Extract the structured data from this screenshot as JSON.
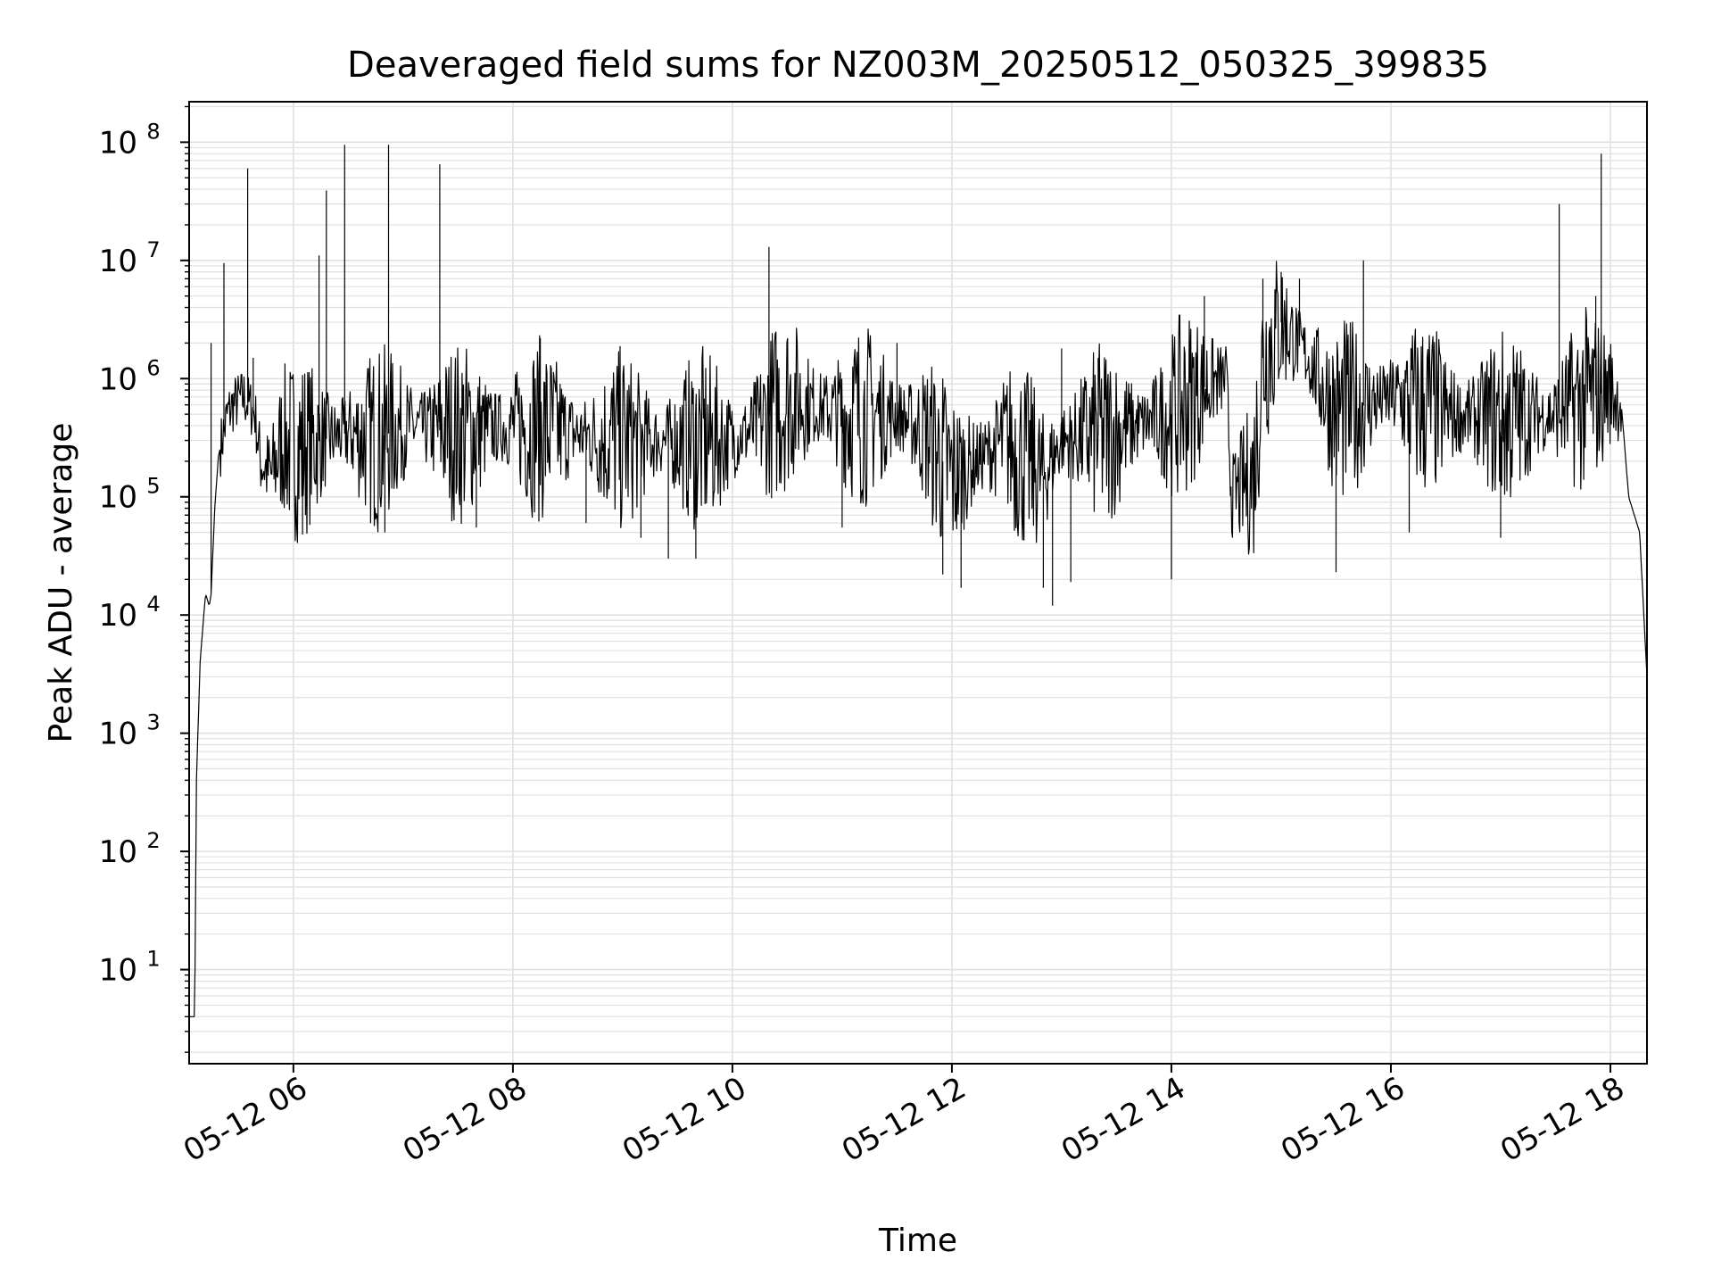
{
  "chart_data": {
    "type": "line",
    "title": "Deaveraged field sums for NZ003M_20250512_050325_399835",
    "xlabel": "Time",
    "ylabel": "Peak ADU - average",
    "y_scale": "log",
    "ylim": [
      1.6,
      220000000
    ],
    "xlim": [
      "2025-05-12 05:03",
      "2025-05-12 18:20"
    ],
    "grid": true,
    "grid_color": "#e0e0e0",
    "line_color": "#000000",
    "x_ticks": [
      {
        "label": "05-12 06",
        "time": "2025-05-12 06:00"
      },
      {
        "label": "05-12 08",
        "time": "2025-05-12 08:00"
      },
      {
        "label": "05-12 10",
        "time": "2025-05-12 10:00"
      },
      {
        "label": "05-12 12",
        "time": "2025-05-12 12:00"
      },
      {
        "label": "05-12 14",
        "time": "2025-05-12 14:00"
      },
      {
        "label": "05-12 16",
        "time": "2025-05-12 16:00"
      },
      {
        "label": "05-12 18",
        "time": "2025-05-12 18:00"
      }
    ],
    "y_ticks": [
      {
        "base": "10",
        "exp": "1",
        "value": 10
      },
      {
        "base": "10",
        "exp": "2",
        "value": 100
      },
      {
        "base": "10",
        "exp": "3",
        "value": 1000
      },
      {
        "base": "10",
        "exp": "4",
        "value": 10000
      },
      {
        "base": "10",
        "exp": "5",
        "value": 100000
      },
      {
        "base": "10",
        "exp": "6",
        "value": 1000000
      },
      {
        "base": "10",
        "exp": "7",
        "value": 10000000
      },
      {
        "base": "10",
        "exp": "8",
        "value": 100000000
      }
    ],
    "series": [
      {
        "points": [
          [
            "2025-05-12 05:03",
            4
          ],
          [
            "2025-05-12 05:06",
            4
          ],
          [
            "2025-05-12 05:07",
            400
          ],
          [
            "2025-05-12 05:09",
            4000
          ],
          [
            "2025-05-12 05:11",
            10000
          ],
          [
            "2025-05-12 05:12",
            15000
          ],
          [
            "2025-05-12 05:14",
            12000
          ],
          [
            "2025-05-12 05:15",
            15000
          ],
          [
            "2025-05-12 05:17",
            80000
          ],
          [
            "2025-05-12 05:19",
            220000
          ],
          [
            "2025-05-12 05:21",
            300000
          ],
          [
            "2025-05-12 05:24",
            500000
          ],
          [
            "2025-05-12 05:27",
            600000
          ],
          [
            "2025-05-12 05:33",
            700000
          ],
          [
            "2025-05-12 05:39",
            500000
          ],
          [
            "2025-05-12 05:42",
            200000
          ],
          [
            "2025-05-12 05:48",
            150000
          ],
          [
            "2025-05-12 05:54",
            300000
          ],
          [
            "2025-05-12 06:00",
            250000
          ],
          [
            "2025-05-12 06:15",
            300000
          ],
          [
            "2025-05-12 06:30",
            350000
          ],
          [
            "2025-05-12 06:45",
            300000
          ],
          [
            "2025-05-12 07:00",
            400000
          ],
          [
            "2025-05-12 07:30",
            350000
          ],
          [
            "2025-05-12 08:00",
            400000
          ],
          [
            "2025-05-12 08:30",
            350000
          ],
          [
            "2025-05-12 09:00",
            300000
          ],
          [
            "2025-05-12 09:30",
            300000
          ],
          [
            "2025-05-12 10:00",
            300000
          ],
          [
            "2025-05-12 10:15",
            400000
          ],
          [
            "2025-05-12 10:30",
            700000
          ],
          [
            "2025-05-12 11:00",
            500000
          ],
          [
            "2025-05-12 11:30",
            500000
          ],
          [
            "2025-05-12 11:45",
            350000
          ],
          [
            "2025-05-12 12:00",
            150000
          ],
          [
            "2025-05-12 12:30",
            300000
          ],
          [
            "2025-05-12 12:50",
            150000
          ],
          [
            "2025-05-12 13:00",
            300000
          ],
          [
            "2025-05-12 13:30",
            350000
          ],
          [
            "2025-05-12 14:00",
            500000
          ],
          [
            "2025-05-12 14:20",
            900000
          ],
          [
            "2025-05-12 14:30",
            1000000
          ],
          [
            "2025-05-12 14:33",
            100000
          ],
          [
            "2025-05-12 14:45",
            150000
          ],
          [
            "2025-05-12 14:50",
            1500000
          ],
          [
            "2025-05-12 15:00",
            3000000
          ],
          [
            "2025-05-12 15:15",
            1500000
          ],
          [
            "2025-05-12 15:30",
            500000
          ],
          [
            "2025-05-12 16:00",
            700000
          ],
          [
            "2025-05-12 16:30",
            500000
          ],
          [
            "2025-05-12 17:00",
            450000
          ],
          [
            "2025-05-12 17:30",
            500000
          ],
          [
            "2025-05-12 17:50",
            700000
          ],
          [
            "2025-05-12 18:00",
            800000
          ],
          [
            "2025-05-12 18:06",
            600000
          ],
          [
            "2025-05-12 18:10",
            100000
          ],
          [
            "2025-05-12 18:16",
            50000
          ],
          [
            "2025-05-12 18:20",
            3000
          ]
        ],
        "spikes": [
          [
            "2025-05-12 05:15",
            2000000
          ],
          [
            "2025-05-12 05:22",
            9500000
          ],
          [
            "2025-05-12 05:35",
            60000000
          ],
          [
            "2025-05-12 05:38",
            1500000
          ],
          [
            "2025-05-12 06:14",
            11000000
          ],
          [
            "2025-05-12 06:18",
            39000000
          ],
          [
            "2025-05-12 06:28",
            95000000
          ],
          [
            "2025-05-12 06:52",
            95000000
          ],
          [
            "2025-05-12 07:20",
            65000000
          ],
          [
            "2025-05-12 08:15",
            2200000
          ],
          [
            "2025-05-12 10:20",
            13000000
          ],
          [
            "2025-05-12 11:30",
            2000000
          ],
          [
            "2025-05-12 13:00",
            1800000
          ],
          [
            "2025-05-12 13:20",
            1500000
          ],
          [
            "2025-05-12 14:18",
            5000000
          ],
          [
            "2025-05-12 14:50",
            7000000
          ],
          [
            "2025-05-12 15:00",
            8000000
          ],
          [
            "2025-05-12 15:10",
            7000000
          ],
          [
            "2025-05-12 15:45",
            10000000
          ],
          [
            "2025-05-12 17:32",
            30000000
          ],
          [
            "2025-05-12 17:55",
            80000000
          ],
          [
            "2025-05-12 17:52",
            5000000
          ]
        ],
        "dips": [
          [
            "2025-05-12 06:05",
            48000
          ],
          [
            "2025-05-12 06:50",
            50000
          ],
          [
            "2025-05-12 07:40",
            55000
          ],
          [
            "2025-05-12 08:40",
            60000
          ],
          [
            "2025-05-12 09:10",
            45000
          ],
          [
            "2025-05-12 09:25",
            30000
          ],
          [
            "2025-05-12 09:40",
            30000
          ],
          [
            "2025-05-12 11:00",
            55000
          ],
          [
            "2025-05-12 11:55",
            22000
          ],
          [
            "2025-05-12 12:05",
            17000
          ],
          [
            "2025-05-12 12:50",
            17000
          ],
          [
            "2025-05-12 12:55",
            12000
          ],
          [
            "2025-05-12 13:05",
            19000
          ],
          [
            "2025-05-12 14:00",
            20000
          ],
          [
            "2025-05-12 15:30",
            23000
          ],
          [
            "2025-05-12 16:10",
            50000
          ],
          [
            "2025-05-12 17:00",
            45000
          ]
        ]
      }
    ]
  }
}
